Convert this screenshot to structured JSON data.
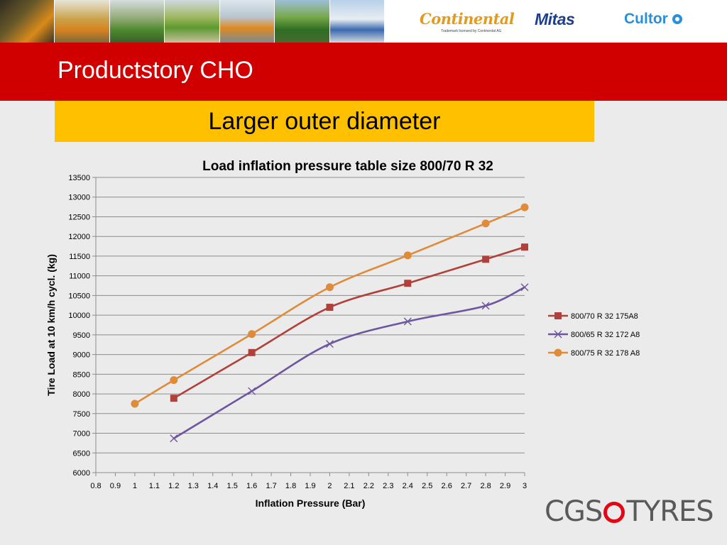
{
  "header": {
    "photos": [
      "tractor-wheel-photo",
      "harvester-photo",
      "tractor-field-photo",
      "green-tractor-photo",
      "utility-vehicle-photo",
      "john-deere-tractor-photo",
      "motorbike-photo"
    ],
    "logos": {
      "continental": "Continental",
      "continental_sub": "Trademark licensed by Continental AG",
      "mitas": "Mitas",
      "cultor": "Cultor"
    }
  },
  "slide": {
    "title": "Productstory CHO",
    "subtitle": "Larger outer diameter"
  },
  "chart_data": {
    "type": "line",
    "title": "Load inflation pressure table size 800/70 R 32",
    "xlabel": "Inflation Pressure (Bar)",
    "ylabel": "Tire Load at 10 km/h cycl. (kg)",
    "xlim": [
      0.8,
      3.0
    ],
    "ylim": [
      6000,
      13500
    ],
    "x_ticks": [
      "0.8",
      "0.9",
      "1",
      "1.1",
      "1.2",
      "1.3",
      "1.4",
      "1.5",
      "1.6",
      "1.7",
      "1.8",
      "1.9",
      "2",
      "2.1",
      "2.2",
      "2.3",
      "2.4",
      "2.5",
      "2.6",
      "2.7",
      "2.8",
      "2.9",
      "3"
    ],
    "y_ticks": [
      "6000",
      "6500",
      "7000",
      "7500",
      "8000",
      "8500",
      "9000",
      "9500",
      "10000",
      "10500",
      "11000",
      "11500",
      "12000",
      "12500",
      "13000",
      "13500"
    ],
    "grid": "horizontal",
    "legend_position": "right",
    "series": [
      {
        "name": "800/70 R 32 175A8",
        "color": "#b1403b",
        "marker": "square",
        "x": [
          1.2,
          1.6,
          2.0,
          2.4,
          2.8,
          3.0
        ],
        "y": [
          7890,
          9050,
          10200,
          10810,
          11420,
          11730
        ]
      },
      {
        "name": "800/65 R 32  172 A8",
        "color": "#6e55a0",
        "marker": "x",
        "x": [
          1.2,
          1.6,
          2.0,
          2.4,
          2.8,
          3.0
        ],
        "y": [
          6870,
          8070,
          9270,
          9840,
          10240,
          10710
        ]
      },
      {
        "name": "800/75 R 32 178 A8",
        "color": "#e08b3a",
        "marker": "circle",
        "x": [
          1.0,
          1.2,
          1.6,
          2.0,
          2.4,
          2.8,
          3.0
        ],
        "y": [
          7750,
          8350,
          9520,
          10710,
          11520,
          12330,
          12740
        ]
      }
    ]
  },
  "footer": {
    "brand_left": "CGS",
    "brand_right": "TYRES"
  }
}
